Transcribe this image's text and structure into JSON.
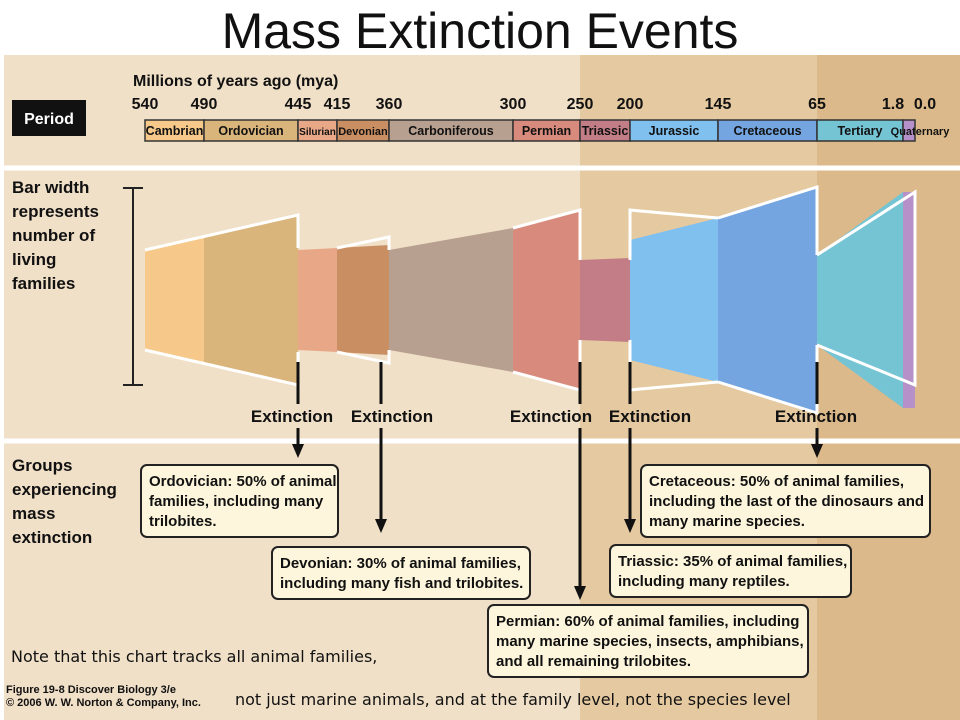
{
  "slide_title": "Mass Extinction Events",
  "figure": {
    "timescale_heading": "Millions of years ago (mya)",
    "period_label": "Period",
    "bar_width_label": [
      "Bar width",
      "represents",
      "number of",
      "living",
      "families"
    ],
    "groups_label": [
      "Groups",
      "experiencing",
      "mass",
      "extinction"
    ],
    "extinction_label": "Extinction"
  },
  "chart_data": {
    "type": "area",
    "title": "",
    "xlabel": "Millions of years ago (mya)",
    "ticks": [
      "540",
      "490",
      "445",
      "415",
      "360",
      "300",
      "250",
      "200",
      "145",
      "65",
      "1.8",
      "0.0"
    ],
    "periods": [
      {
        "name": "Cambrian",
        "color": "#f6c98a"
      },
      {
        "name": "Ordovician",
        "color": "#d9b47b"
      },
      {
        "name": "Silurian",
        "color": "#e8a888"
      },
      {
        "name": "Devonian",
        "color": "#c98e62"
      },
      {
        "name": "Carboniferous",
        "color": "#b8a090"
      },
      {
        "name": "Permian",
        "color": "#d88a7c"
      },
      {
        "name": "Triassic",
        "color": "#c27d86"
      },
      {
        "name": "Jurassic",
        "color": "#7fc0ee"
      },
      {
        "name": "Cretaceous",
        "color": "#74a5e0"
      },
      {
        "name": "Tertiary",
        "color": "#74c4d4"
      },
      {
        "name": "Quaternary",
        "color": "#b690c8"
      }
    ],
    "extinctions": [
      {
        "period": "Ordovician",
        "line1": "Ordovician: 50% of animal",
        "line2": "families, including many",
        "line3": "trilobites."
      },
      {
        "period": "Devonian",
        "line1": "Devonian: 30% of animal families,",
        "line2": "including many fish and trilobites."
      },
      {
        "period": "Permian",
        "line1": "Permian: 60% of animal families, including",
        "line2": "many marine species, insects, amphibians,",
        "line3": "and all remaining trilobites."
      },
      {
        "period": "Triassic",
        "line1": "Triassic: 35% of animal families,",
        "line2": "including many reptiles."
      },
      {
        "period": "Cretaceous",
        "line1": "Cretaceous: 50% of animal families,",
        "line2": "including the last of the dinosaurs and",
        "line3": "many marine species."
      }
    ]
  },
  "note_line1": "Note that this chart tracks all animal families,",
  "note_line2": "not just marine animals, and at the family level, not the species level",
  "credit": {
    "line1": "Figure 19-8  Discover Biology 3/e",
    "line2": "© 2006 W. W. Norton & Company, Inc."
  }
}
